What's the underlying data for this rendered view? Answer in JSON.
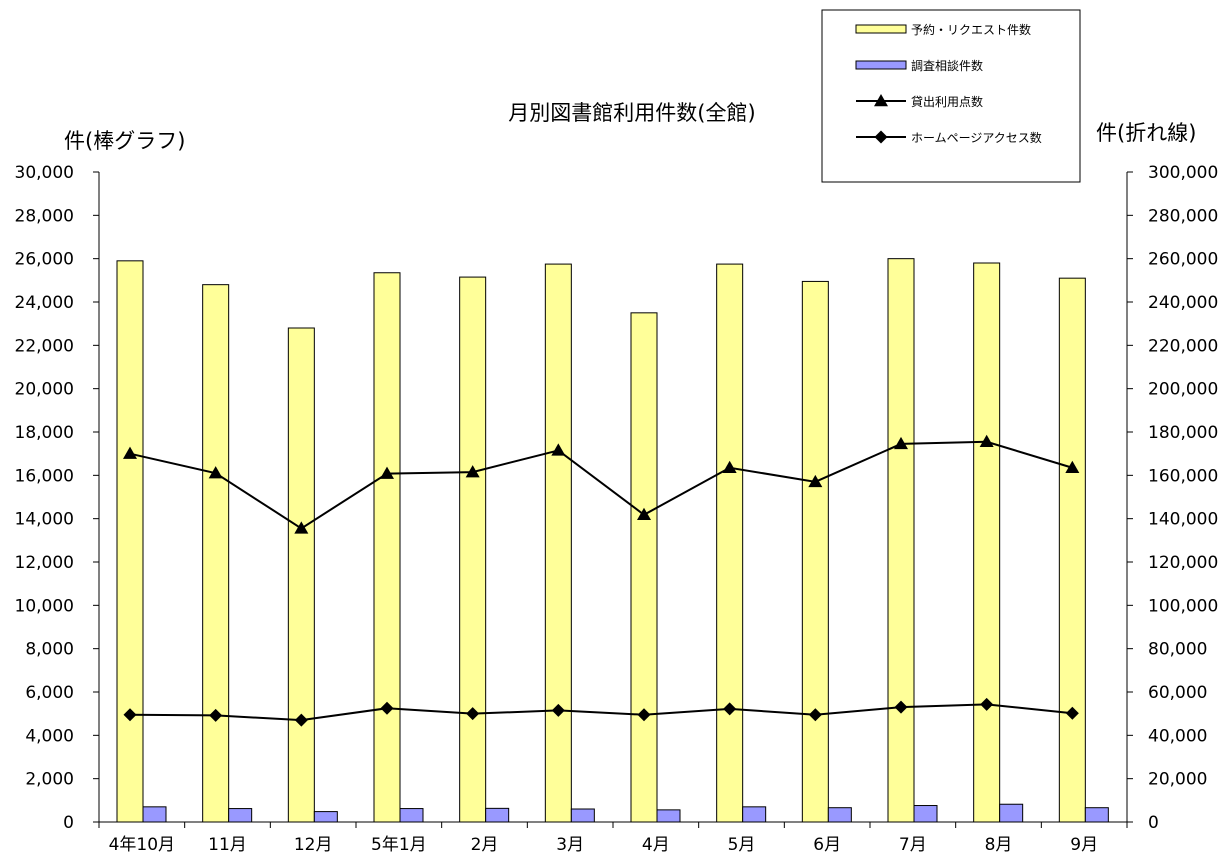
{
  "chart_data": {
    "type": "bar",
    "title": "月別図書館利用件数(全館)",
    "ylabel_left": "件(棒グラフ)",
    "ylabel_right": "件(折れ線)",
    "categories": [
      "4年10月",
      "11月",
      "12月",
      "5年1月",
      "2月",
      "3月",
      "4月",
      "5月",
      "6月",
      "7月",
      "8月",
      "9月"
    ],
    "left_axis": {
      "ylim": [
        0,
        30000
      ],
      "ticks": [
        "0",
        "2,000",
        "4,000",
        "6,000",
        "8,000",
        "10,000",
        "12,000",
        "14,000",
        "16,000",
        "18,000",
        "20,000",
        "22,000",
        "24,000",
        "26,000",
        "28,000",
        "30,000"
      ]
    },
    "right_axis": {
      "ylim": [
        0,
        300000
      ],
      "ticks": [
        "0",
        "20,000",
        "40,000",
        "60,000",
        "80,000",
        "100,000",
        "120,000",
        "140,000",
        "160,000",
        "180,000",
        "200,000",
        "220,000",
        "240,000",
        "260,000",
        "280,000",
        "300,000"
      ]
    },
    "bar_series": [
      {
        "name": "予約・リクエスト件数",
        "color": "#ffff99",
        "values": [
          25900,
          24800,
          22800,
          25350,
          25150,
          25750,
          23500,
          25750,
          24950,
          26000,
          25800,
          25100
        ]
      },
      {
        "name": "調査相談件数",
        "color": "#9999ff",
        "values": [
          700,
          620,
          480,
          620,
          630,
          600,
          560,
          700,
          660,
          760,
          820,
          660
        ]
      }
    ],
    "line_series": [
      {
        "name": "貸出利用点数",
        "marker": "triangle",
        "color": "#000000",
        "values": [
          170000,
          161000,
          135500,
          160800,
          161500,
          171500,
          141800,
          163500,
          157000,
          174500,
          175500,
          163500
        ]
      },
      {
        "name": "ホームページアクセス数",
        "marker": "diamond",
        "color": "#000000",
        "values": [
          49500,
          49200,
          47000,
          52500,
          50000,
          51500,
          49500,
          52200,
          49500,
          53000,
          54300,
          50200
        ]
      }
    ],
    "legend_position": "top-right",
    "grid": false
  }
}
